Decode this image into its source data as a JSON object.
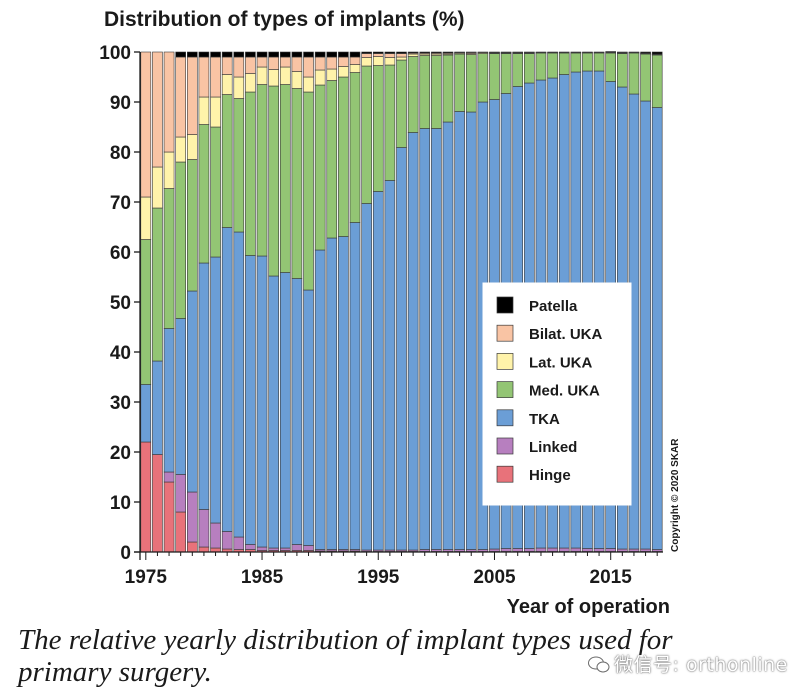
{
  "chart_data": {
    "type": "bar",
    "stacked": true,
    "title": "Distribution of types of implants (%)",
    "xlabel": "Year of operation",
    "ylabel": "",
    "copyright": "Copyright © 2020 SKAR",
    "ylim": [
      0,
      100
    ],
    "xlim": [
      1975,
      2019
    ],
    "yticks": [
      0,
      10,
      20,
      30,
      40,
      50,
      60,
      70,
      80,
      90,
      100
    ],
    "xticks": [
      1975,
      1985,
      1995,
      2005,
      2015
    ],
    "legend_position": "lower-right",
    "x": [
      1975,
      1976,
      1977,
      1978,
      1979,
      1980,
      1981,
      1982,
      1983,
      1984,
      1985,
      1986,
      1987,
      1988,
      1989,
      1990,
      1991,
      1992,
      1993,
      1994,
      1995,
      1996,
      1997,
      1998,
      1999,
      2000,
      2001,
      2002,
      2003,
      2004,
      2005,
      2006,
      2007,
      2008,
      2009,
      2010,
      2011,
      2012,
      2013,
      2014,
      2015,
      2016,
      2017,
      2018,
      2019
    ],
    "series": [
      {
        "name": "Hinge",
        "color": "#e8727a",
        "values": [
          22,
          19.5,
          14,
          8,
          2,
          1,
          0.8,
          0.6,
          0.5,
          0.5,
          0.3,
          0.3,
          0.3,
          0.3,
          0.3,
          0.2,
          0.2,
          0.2,
          0.2,
          0.1,
          0.1,
          0.1,
          0.1,
          0.1,
          0.1,
          0.1,
          0.1,
          0.1,
          0.1,
          0.1,
          0.1,
          0.1,
          0.1,
          0.1,
          0.1,
          0.1,
          0.1,
          0.1,
          0.1,
          0.1,
          0.1,
          0.1,
          0.1,
          0.1,
          0.1
        ]
      },
      {
        "name": "Linked",
        "color": "#b77fbf",
        "values": [
          0,
          0,
          2,
          7.5,
          10,
          7.5,
          5,
          3.5,
          2.5,
          1,
          0.7,
          0.5,
          0.5,
          1.2,
          1,
          0.3,
          0.3,
          0.3,
          0.3,
          0.3,
          0.3,
          0.3,
          0.3,
          0.3,
          0.4,
          0.4,
          0.4,
          0.4,
          0.4,
          0.4,
          0.5,
          0.6,
          0.6,
          0.6,
          0.7,
          0.7,
          0.7,
          0.7,
          0.6,
          0.6,
          0.6,
          0.5,
          0.5,
          0.5,
          0.4
        ]
      },
      {
        "name": "TKA",
        "color": "#6b9ed6",
        "values": [
          11.5,
          18.7,
          28.7,
          31.2,
          40.2,
          49.3,
          53.2,
          60.8,
          61,
          57.8,
          58.2,
          54.4,
          55.1,
          53.2,
          51.1,
          59.9,
          62.3,
          62.6,
          65.4,
          69.3,
          71.7,
          73.9,
          80.5,
          83.5,
          84.2,
          84.2,
          85.5,
          87.6,
          87.5,
          89.5,
          89.9,
          91,
          92.4,
          93.1,
          93.6,
          94,
          94.7,
          95.2,
          95.5,
          95.5,
          93.4,
          92.4,
          91,
          89.6,
          88.4
        ]
      },
      {
        "name": "Med. UKA",
        "color": "#93c574",
        "values": [
          29,
          30.6,
          28,
          31.3,
          26.3,
          27.7,
          26,
          26.6,
          26.7,
          32.7,
          34.3,
          38,
          37.6,
          38,
          39.6,
          33,
          31.5,
          31.9,
          30,
          27.5,
          25.2,
          23.1,
          17.5,
          15.2,
          14.6,
          14.6,
          13.4,
          11.5,
          11.5,
          9.7,
          9.2,
          8,
          6.6,
          5.9,
          5.4,
          5,
          4.3,
          3.8,
          3.6,
          3.6,
          5.7,
          6.7,
          8.2,
          9.4,
          10.5
        ]
      },
      {
        "name": "Lat. UKA",
        "color": "#fff3aa",
        "values": [
          8.5,
          8.2,
          7.3,
          5,
          5,
          5.5,
          6,
          4,
          4.3,
          3.7,
          3.5,
          3.3,
          3.5,
          3.4,
          3,
          3,
          2.3,
          2.1,
          1.6,
          1.7,
          1.8,
          1.5,
          0.6,
          0.5,
          0.3,
          0.3,
          0.2,
          0.2,
          0.2,
          0.2,
          0.1,
          0.1,
          0.1,
          0.1,
          0.1,
          0.1,
          0.1,
          0.1,
          0.1,
          0.1,
          0.1,
          0.1,
          0.1,
          0.1,
          0.1
        ]
      },
      {
        "name": "Bilat. UKA",
        "color": "#f9c4a4",
        "values": [
          29,
          23,
          20,
          16,
          15.5,
          8,
          8,
          3.5,
          4,
          3.3,
          2,
          2.5,
          2,
          2.9,
          4,
          2.6,
          2.4,
          1.9,
          1.5,
          0.8,
          0.6,
          0.8,
          0.7,
          0.2,
          0.2,
          0.2,
          0.2,
          0.1,
          0.2,
          0.1,
          0.1,
          0.1,
          0.1,
          0.1,
          0.1,
          0.1,
          0.1,
          0.1,
          0.1,
          0.1,
          0.1,
          0.1,
          0.1,
          0.1,
          0.1
        ]
      },
      {
        "name": "Patella",
        "color": "#000000",
        "values": [
          0,
          0,
          0,
          1,
          1,
          1,
          1,
          1,
          1,
          1,
          1,
          1,
          1,
          1,
          1,
          1,
          1,
          1,
          1,
          0.3,
          0.3,
          0.3,
          0.3,
          0.2,
          0.2,
          0.2,
          0.2,
          0.1,
          0.1,
          0,
          0.1,
          0.1,
          0.1,
          0.1,
          0,
          0,
          0,
          0,
          0,
          0,
          0.1,
          0.1,
          0,
          0.2,
          0.4
        ]
      }
    ]
  },
  "caption": "The relative yearly distribution of implant types used for primary surgery.",
  "watermark": "微信号: orthonline"
}
